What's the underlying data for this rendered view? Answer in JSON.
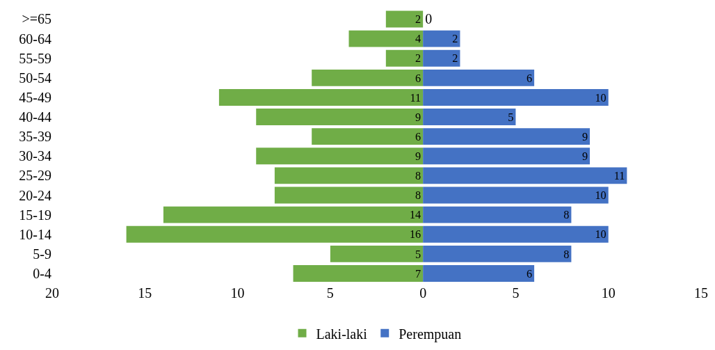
{
  "chart_data": {
    "type": "bar",
    "orientation": "horizontal",
    "categories": [
      ">=65",
      "60-64",
      "55-59",
      "50-54",
      "45-49",
      "40-44",
      "35-39",
      "30-34",
      "25-29",
      "20-24",
      "15-19",
      "10-14",
      "5-9",
      "0-4"
    ],
    "series": [
      {
        "name": "Laki-laki",
        "color": "#70ad47",
        "values": [
          2,
          4,
          2,
          6,
          11,
          9,
          6,
          9,
          8,
          8,
          14,
          16,
          5,
          7
        ],
        "base": [
          -2,
          -4,
          -2,
          -6,
          -11,
          -9,
          -6,
          -9,
          -8,
          -8,
          -14,
          -16,
          -5,
          -7
        ]
      },
      {
        "name": "Perempuan",
        "color": "#4472c4",
        "values": [
          0,
          2,
          2,
          6,
          10,
          5,
          9,
          9,
          11,
          10,
          8,
          10,
          8,
          6
        ]
      }
    ],
    "data_labels": true,
    "xlim": [
      -20,
      15
    ],
    "xticks": [
      {
        "value": -20,
        "label": "20"
      },
      {
        "value": -15,
        "label": "15"
      },
      {
        "value": -10,
        "label": "10"
      },
      {
        "value": -5,
        "label": "5"
      },
      0,
      5,
      10,
      15
    ],
    "legend": "bottom"
  }
}
